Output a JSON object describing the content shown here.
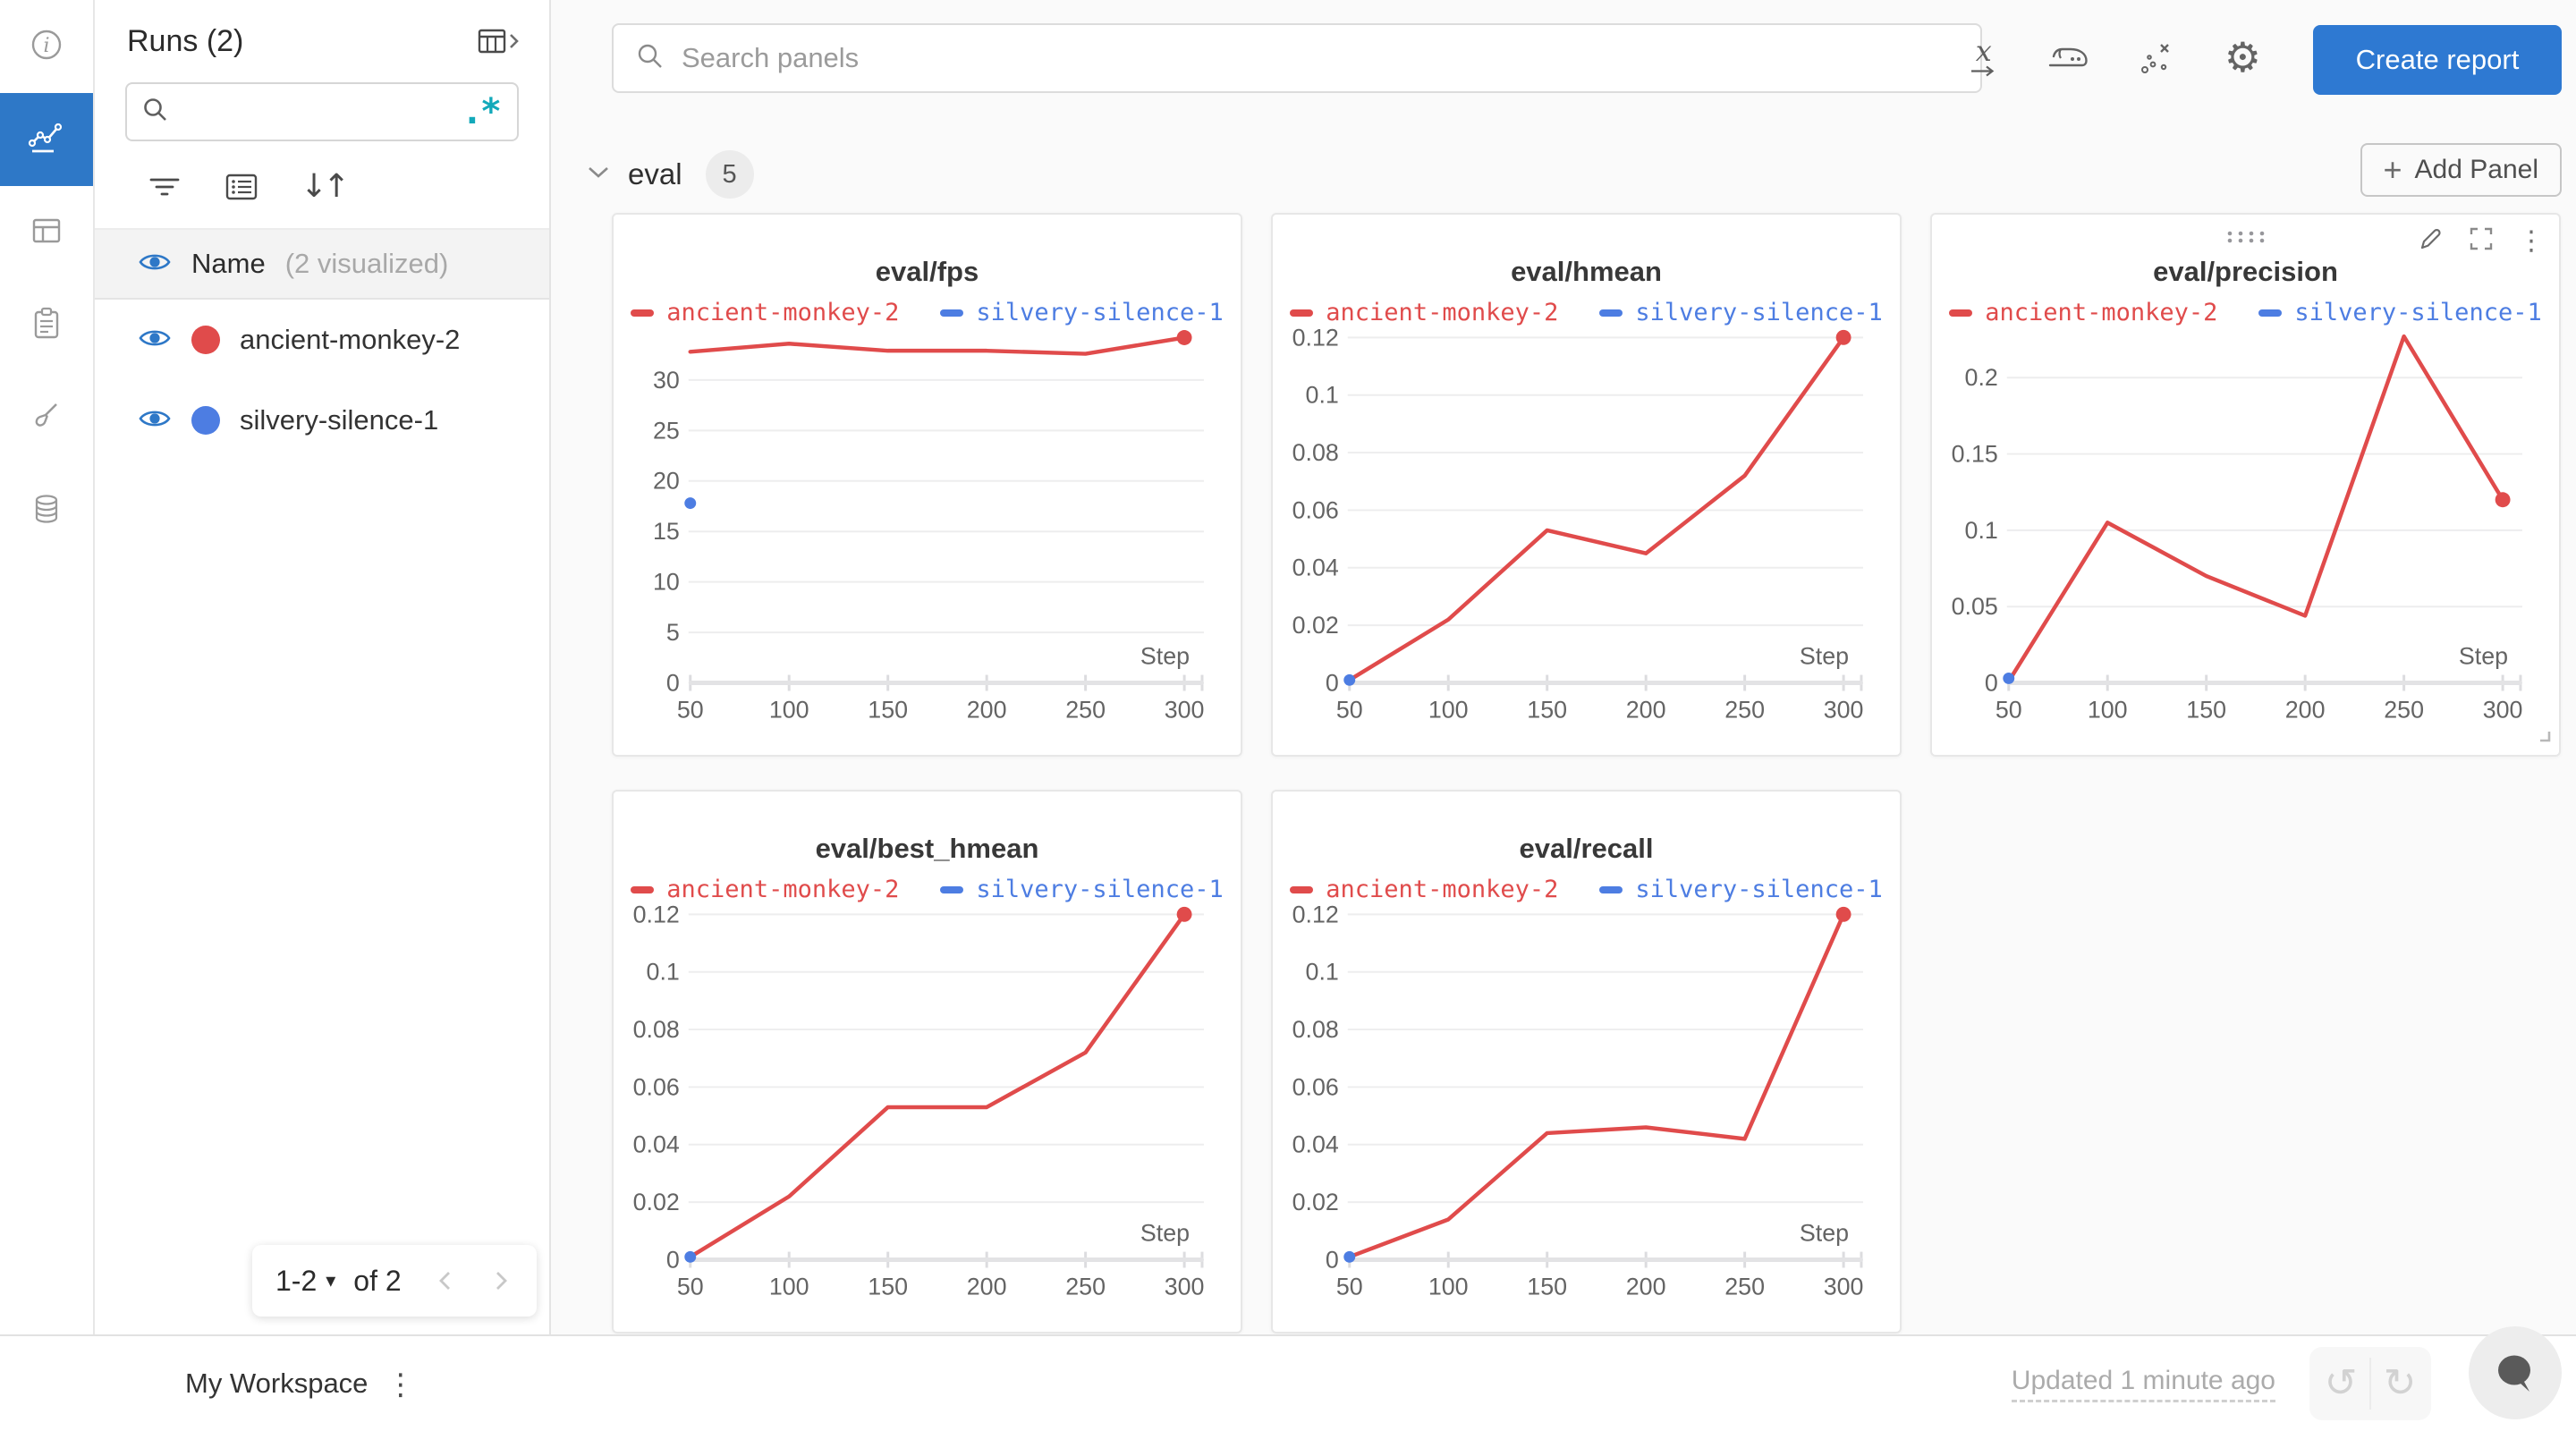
{
  "colors": {
    "accent_blue": "#2e78c7",
    "button_blue": "#2e79d2",
    "run_red": "#e04b4b",
    "run_blue": "#4d7de2",
    "regex_teal": "#13a9ba"
  },
  "rail": {
    "items": [
      {
        "name": "info",
        "active": false
      },
      {
        "name": "workspace-charts",
        "active": true
      },
      {
        "name": "runs-table",
        "active": false
      },
      {
        "name": "logs",
        "active": false
      },
      {
        "name": "sweeps",
        "active": false
      },
      {
        "name": "artifacts",
        "active": false
      }
    ]
  },
  "runs_panel": {
    "title": "Runs (2)",
    "search_placeholder": "",
    "visualized_row": {
      "label": "Name",
      "note": "(2 visualized)"
    },
    "runs": [
      {
        "name": "ancient-monkey-2",
        "color": "#e04b4b"
      },
      {
        "name": "silvery-silence-1",
        "color": "#4d7de2"
      }
    ],
    "pagination": {
      "range": "1-2",
      "caret": "▾",
      "of": "of 2"
    }
  },
  "topbar": {
    "search_placeholder": "Search panels",
    "create_report_label": "Create report"
  },
  "section": {
    "title": "eval",
    "count": "5",
    "add_panel_label": "Add Panel",
    "plus": "+"
  },
  "icons": {
    "gear": "⚙",
    "sort": "↓↑",
    "kebab": "⋮",
    "regex": ".*",
    "x_axis": "x",
    "undo": "↺",
    "redo": "↻"
  },
  "footer": {
    "workspace_label": "My Workspace",
    "updated_label": "Updated 1 minute ago"
  },
  "panels_state": {
    "hovered_index": 2
  },
  "chart_data": [
    {
      "type": "line",
      "title": "eval/fps",
      "xlabel": "Step",
      "xlim": [
        50,
        300
      ],
      "x": [
        50,
        100,
        150,
        200,
        250,
        300
      ],
      "x_tick_labels": [
        "50",
        "100",
        "150",
        "200",
        "250",
        "300"
      ],
      "yticks": [
        0,
        5,
        10,
        15,
        20,
        25,
        30
      ],
      "ytick_labels": [
        "0",
        "5",
        "10",
        "15",
        "20",
        "25",
        "30"
      ],
      "ylim": [
        0,
        34.5
      ],
      "grid": true,
      "legend_position": "top",
      "series": [
        {
          "name": "ancient-monkey-2",
          "color": "#e04b4b",
          "values": [
            32.8,
            33.6,
            32.9,
            32.9,
            32.6,
            34.2
          ],
          "end_dot": true
        },
        {
          "name": "silvery-silence-1",
          "color": "#4d7de2",
          "points": [
            {
              "x": 50,
              "y": 17.8
            }
          ]
        }
      ]
    },
    {
      "type": "line",
      "title": "eval/hmean",
      "xlabel": "Step",
      "xlim": [
        50,
        300
      ],
      "x": [
        50,
        100,
        150,
        200,
        250,
        300
      ],
      "x_tick_labels": [
        "50",
        "100",
        "150",
        "200",
        "250",
        "300"
      ],
      "yticks": [
        0,
        0.02,
        0.04,
        0.06,
        0.08,
        0.1,
        0.12
      ],
      "ytick_labels": [
        "0",
        "0.02",
        "0.04",
        "0.06",
        "0.08",
        "0.1",
        "0.12"
      ],
      "ylim": [
        0,
        0.121
      ],
      "grid": true,
      "legend_position": "top",
      "series": [
        {
          "name": "ancient-monkey-2",
          "color": "#e04b4b",
          "values": [
            0.001,
            0.022,
            0.053,
            0.045,
            0.072,
            0.12
          ],
          "end_dot": true
        },
        {
          "name": "silvery-silence-1",
          "color": "#4d7de2",
          "points": [
            {
              "x": 50,
              "y": 0.001
            }
          ]
        }
      ]
    },
    {
      "type": "line",
      "title": "eval/precision",
      "xlabel": "Step",
      "xlim": [
        50,
        300
      ],
      "x": [
        50,
        100,
        150,
        200,
        250,
        300
      ],
      "x_tick_labels": [
        "50",
        "100",
        "150",
        "200",
        "250",
        "300"
      ],
      "yticks": [
        0,
        0.05,
        0.1,
        0.15,
        0.2
      ],
      "ytick_labels": [
        "0",
        "0.05",
        "0.1",
        "0.15",
        "0.2"
      ],
      "ylim": [
        0,
        0.2282
      ],
      "grid": true,
      "legend_position": "top",
      "series": [
        {
          "name": "ancient-monkey-2",
          "color": "#e04b4b",
          "values": [
            0.001,
            0.105,
            0.07,
            0.044,
            0.227,
            0.12
          ],
          "end_dot": true
        },
        {
          "name": "silvery-silence-1",
          "color": "#4d7de2",
          "points": [
            {
              "x": 50,
              "y": 0.003
            }
          ]
        }
      ]
    },
    {
      "type": "line",
      "title": "eval/best_hmean",
      "xlabel": "Step",
      "xlim": [
        50,
        300
      ],
      "x": [
        50,
        100,
        150,
        200,
        250,
        300
      ],
      "x_tick_labels": [
        "50",
        "100",
        "150",
        "200",
        "250",
        "300"
      ],
      "yticks": [
        0,
        0.02,
        0.04,
        0.06,
        0.08,
        0.1,
        0.12
      ],
      "ytick_labels": [
        "0",
        "0.02",
        "0.04",
        "0.06",
        "0.08",
        "0.1",
        "0.12"
      ],
      "ylim": [
        0,
        0.121
      ],
      "grid": true,
      "legend_position": "top",
      "series": [
        {
          "name": "ancient-monkey-2",
          "color": "#e04b4b",
          "values": [
            0.001,
            0.022,
            0.053,
            0.053,
            0.072,
            0.12
          ],
          "end_dot": true
        },
        {
          "name": "silvery-silence-1",
          "color": "#4d7de2",
          "points": [
            {
              "x": 50,
              "y": 0.001
            }
          ]
        }
      ]
    },
    {
      "type": "line",
      "title": "eval/recall",
      "xlabel": "Step",
      "xlim": [
        50,
        300
      ],
      "x": [
        50,
        100,
        150,
        200,
        250,
        300
      ],
      "x_tick_labels": [
        "50",
        "100",
        "150",
        "200",
        "250",
        "300"
      ],
      "yticks": [
        0,
        0.02,
        0.04,
        0.06,
        0.08,
        0.1,
        0.12
      ],
      "ytick_labels": [
        "0",
        "0.02",
        "0.04",
        "0.06",
        "0.08",
        "0.1",
        "0.12"
      ],
      "ylim": [
        0,
        0.121
      ],
      "grid": true,
      "legend_position": "top",
      "series": [
        {
          "name": "ancient-monkey-2",
          "color": "#e04b4b",
          "values": [
            0.001,
            0.014,
            0.044,
            0.046,
            0.042,
            0.12
          ],
          "end_dot": true
        },
        {
          "name": "silvery-silence-1",
          "color": "#4d7de2",
          "points": [
            {
              "x": 50,
              "y": 0.001
            }
          ]
        }
      ]
    }
  ]
}
